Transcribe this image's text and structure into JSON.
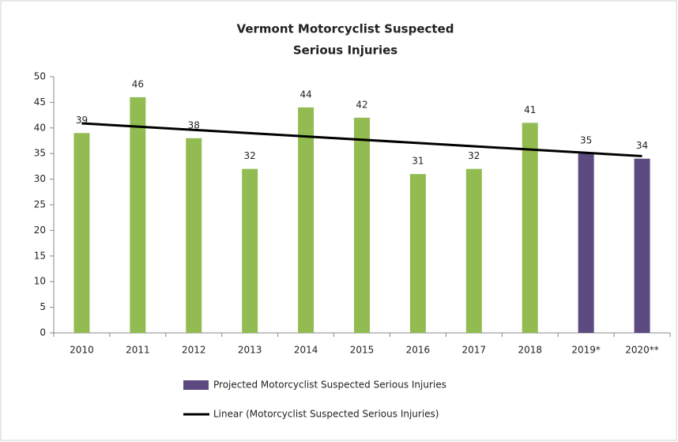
{
  "chart_data": {
    "type": "bar",
    "title": [
      "Vermont Motorcyclist Suspected",
      "Serious Injuries"
    ],
    "categories": [
      "2010",
      "2011",
      "2012",
      "2013",
      "2014",
      "2015",
      "2016",
      "2017",
      "2018",
      "2019*",
      "2020**"
    ],
    "values": [
      39,
      46,
      38,
      32,
      44,
      42,
      31,
      32,
      41,
      35,
      34
    ],
    "colors": [
      "#92bc52",
      "#92bc52",
      "#92bc52",
      "#92bc52",
      "#92bc52",
      "#92bc52",
      "#92bc52",
      "#92bc52",
      "#92bc52",
      "#5d4a80",
      "#5d4a80"
    ],
    "ylim": [
      0,
      50
    ],
    "yticks": [
      0,
      5,
      10,
      15,
      20,
      25,
      30,
      35,
      40,
      45,
      50
    ],
    "trend": {
      "name": "Linear (Motorcyclist Suspected Serious Injuries)",
      "color": "#000000",
      "values": [
        40.9,
        34.5
      ]
    },
    "legend": [
      {
        "label": "Projected Motorcyclist Suspected Serious Injuries",
        "color": "#5d4a80"
      }
    ]
  }
}
